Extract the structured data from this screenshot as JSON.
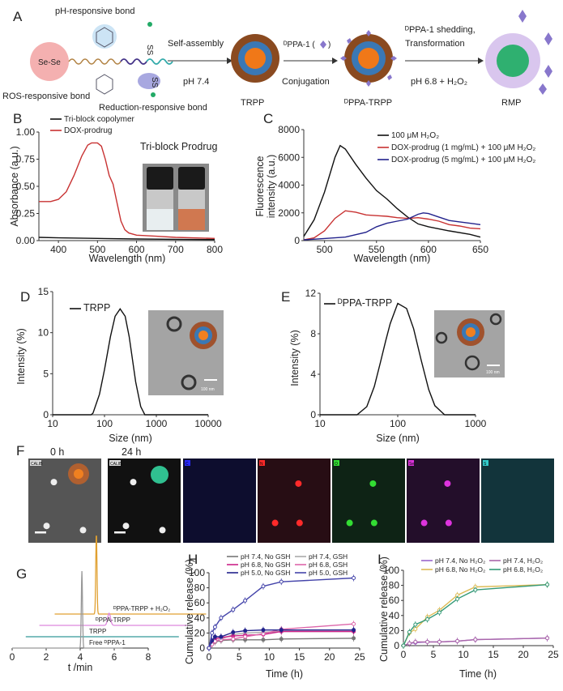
{
  "panels": {
    "A": {
      "label": "A",
      "ph_bond": "pH-responsive bond",
      "ros_bond": "ROS-responsive bond",
      "red_bond": "Reduction-responsive bond",
      "sese": "Se-Se",
      "ss1": "SS",
      "ss2": "SS",
      "step1_top": "Self-assembly",
      "step1_bottom": "pH 7.4",
      "trpp": "TRPP",
      "step2_top": "ᴰPPA-1 (",
      "step2_top_close": ")",
      "step2_bottom": "Conjugation",
      "dppa_trpp": "ᴰPPA-TRPP",
      "step3_top1": "ᴰPPA-1 shedding,",
      "step3_top2": "Transformation",
      "step3_bottom": "pH 6.8 + H₂O₂",
      "rmp": "RMP"
    },
    "B": {
      "label": "B",
      "inset_title": "Tri-block Prodrug"
    },
    "C": {
      "label": "C"
    },
    "D": {
      "label": "D",
      "scale_bar": "100 nm"
    },
    "E": {
      "label": "E",
      "scale_bar": "100 nm"
    },
    "F": {
      "label": "F",
      "time0": "0 h",
      "time24": "24 h",
      "tiles": [
        {
          "tag": "CALIB",
          "color": "#dddddd"
        },
        {
          "tag": "CALIB",
          "color": "#dddddd"
        },
        {
          "tag": "C",
          "color": "#2a2aff"
        },
        {
          "tag": "N",
          "color": "#ff2a2a"
        },
        {
          "tag": "O",
          "color": "#33dd33"
        },
        {
          "tag": "Se",
          "color": "#dd33dd"
        },
        {
          "tag": "S",
          "color": "#33cccc"
        }
      ]
    },
    "G": {
      "label": "G"
    },
    "H": {
      "label": "H"
    },
    "I": {
      "label": "I"
    }
  },
  "chart_data": [
    {
      "panel": "B",
      "type": "line",
      "xlabel": "Wavelength (nm)",
      "ylabel": "Absorbance (a.u.)",
      "xlim": [
        350,
        800
      ],
      "ylim": [
        0,
        1
      ],
      "xticks": [
        "400",
        "500",
        "600",
        "700",
        "800"
      ],
      "yticks": [
        "0.00",
        "0.25",
        "0.50",
        "0.75",
        "1.00"
      ],
      "legend": "top-left",
      "series": [
        {
          "name": "Tri-block copolymer",
          "color": "#111111",
          "x": [
            350,
            400,
            500,
            600,
            700,
            800
          ],
          "y": [
            0.03,
            0.025,
            0.02,
            0.015,
            0.012,
            0.01
          ]
        },
        {
          "name": "DOX-prodrug",
          "color": "#c83232",
          "x": [
            350,
            380,
            400,
            420,
            440,
            460,
            475,
            485,
            500,
            510,
            520,
            530,
            540,
            550,
            560,
            570,
            580,
            600,
            650,
            700,
            800
          ],
          "y": [
            0.36,
            0.36,
            0.38,
            0.45,
            0.6,
            0.78,
            0.88,
            0.9,
            0.9,
            0.87,
            0.75,
            0.6,
            0.52,
            0.35,
            0.18,
            0.1,
            0.07,
            0.05,
            0.04,
            0.03,
            0.02
          ]
        }
      ]
    },
    {
      "panel": "C",
      "type": "line",
      "xlabel": "Wavelength (nm)",
      "ylabel": "Fluorescence intensity (a.u.)",
      "ylabel_line1": "Fluorescence",
      "ylabel_line2": "intensity (a.u.)",
      "xlim": [
        480,
        650
      ],
      "ylim": [
        0,
        8000
      ],
      "xticks": [
        "500",
        "550",
        "600",
        "650"
      ],
      "yticks": [
        "0",
        "2000",
        "4000",
        "6000",
        "8000"
      ],
      "legend": "top-right",
      "series": [
        {
          "name": "100 μM H₂O₂",
          "color": "#111111",
          "x": [
            480,
            490,
            500,
            510,
            515,
            520,
            530,
            540,
            550,
            560,
            570,
            580,
            590,
            600,
            620,
            640,
            650
          ],
          "y": [
            300,
            1500,
            3500,
            6000,
            6850,
            6600,
            5500,
            4500,
            3600,
            3000,
            2300,
            1700,
            1200,
            1000,
            700,
            450,
            250
          ]
        },
        {
          "name": "DOX-prodrug (1 mg/mL) + 100 μM  H₂O₂",
          "color": "#c83232",
          "x": [
            480,
            490,
            500,
            510,
            520,
            530,
            540,
            550,
            560,
            570,
            580,
            590,
            600,
            610,
            620,
            630,
            640,
            650
          ],
          "y": [
            50,
            200,
            700,
            1600,
            2150,
            2050,
            1850,
            1800,
            1750,
            1650,
            1600,
            1650,
            1550,
            1400,
            1150,
            1050,
            900,
            850
          ]
        },
        {
          "name": "DOX-prodrug (5 mg/mL) + 100 μM H₂O₂",
          "color": "#22228c",
          "x": [
            480,
            500,
            520,
            540,
            550,
            560,
            570,
            580,
            590,
            595,
            600,
            610,
            620,
            630,
            640,
            650
          ],
          "y": [
            50,
            150,
            250,
            600,
            1000,
            1250,
            1400,
            1550,
            1900,
            2000,
            1950,
            1700,
            1450,
            1350,
            1250,
            1150
          ]
        }
      ]
    },
    {
      "panel": "D",
      "type": "line",
      "xscale": "log",
      "xlabel": "Size (nm)",
      "ylabel": "Intensity (%)",
      "xlim": [
        10,
        10000
      ],
      "ylim": [
        0,
        15
      ],
      "xticks": [
        "10",
        "100",
        "1000",
        "10000"
      ],
      "yticks": [
        "0",
        "5",
        "10",
        "15"
      ],
      "legend": "top-left",
      "series": [
        {
          "name": "TRPP",
          "color": "#111111",
          "x": [
            10,
            55,
            60,
            80,
            100,
            130,
            160,
            200,
            250,
            300,
            400,
            500,
            600,
            1000,
            10000
          ],
          "y": [
            0,
            0,
            0.2,
            2.5,
            5.5,
            9.5,
            12,
            12.9,
            12,
            9.5,
            4,
            1,
            0,
            0,
            0
          ]
        }
      ]
    },
    {
      "panel": "E",
      "type": "line",
      "xscale": "log",
      "xlabel": "Size (nm)",
      "ylabel": "Intensity (%)",
      "xlim": [
        10,
        1000
      ],
      "ylim": [
        0,
        12
      ],
      "xticks": [
        "10",
        "100",
        "1000"
      ],
      "yticks": [
        "0",
        "4",
        "8",
        "12"
      ],
      "legend": "top-left",
      "series": [
        {
          "name": "ᴰPPA-TRPP",
          "color": "#111111",
          "x": [
            10,
            30,
            40,
            50,
            60,
            70,
            80,
            100,
            130,
            160,
            200,
            250,
            300,
            400,
            1000
          ],
          "y": [
            0,
            0,
            0.8,
            2.8,
            5.2,
            7.3,
            9,
            11,
            10.5,
            8.5,
            5.4,
            2.5,
            0.9,
            0,
            0
          ]
        }
      ]
    },
    {
      "panel": "G",
      "type": "line",
      "xlabel": "t /min",
      "xlim": [
        0,
        8
      ],
      "xticks": [
        "0",
        "2",
        "4",
        "6",
        "8"
      ],
      "series": [
        {
          "name": "ᴰPPA-TRPP + H₂O₂",
          "color": "#e0a030",
          "start": 2.5,
          "end": 11.4,
          "peak_time": 4.95,
          "peak_height": 1.0
        },
        {
          "name": "ᴰPPA-TRPP",
          "color": "#dd88dd",
          "start": 1.6,
          "end": 10.5,
          "peak_time": 5.7,
          "peak_height": 0.1
        },
        {
          "name": "TRPP",
          "color": "#339999",
          "start": 0.8,
          "end": 9.8,
          "peak_time": null,
          "peak_height": 0
        },
        {
          "name": "Free ᴰPPA-1",
          "color": "#999999",
          "start": 0,
          "end": 6.5,
          "peak_time": 4.1,
          "peak_height": 0.95
        }
      ]
    },
    {
      "panel": "H",
      "type": "line",
      "xlabel": "Time (h)",
      "ylabel": "Cumulative release (%)",
      "xlim": [
        0,
        25
      ],
      "ylim": [
        0,
        100
      ],
      "xticks": [
        "0",
        "5",
        "10",
        "15",
        "20",
        "25"
      ],
      "yticks": [
        "0",
        "20",
        "40",
        "60",
        "80",
        "100"
      ],
      "legend": "top",
      "x": [
        0,
        0.5,
        1,
        2,
        4,
        6,
        9,
        12,
        24
      ],
      "series": [
        {
          "name": "pH 7.4, No GSH",
          "color": "#777777",
          "marker": "filled",
          "y": [
            0,
            5,
            8,
            10,
            11,
            11,
            11,
            12,
            13
          ]
        },
        {
          "name": "pH 7.4, GSH",
          "color": "#aaaaaa",
          "marker": "open",
          "y": [
            0,
            6,
            9,
            12,
            18,
            20,
            21,
            22,
            22
          ]
        },
        {
          "name": "pH 6.8, No GSH",
          "color": "#cc2288",
          "marker": "filled",
          "y": [
            0,
            8,
            12,
            14,
            16,
            17,
            18,
            22,
            22
          ]
        },
        {
          "name": "pH 6.8, GSH",
          "color": "#dd66aa",
          "marker": "open",
          "y": [
            0,
            5,
            9,
            11,
            12,
            15,
            19,
            25,
            32
          ]
        },
        {
          "name": "pH 5.0, No GSH",
          "color": "#22228c",
          "marker": "filled",
          "y": [
            0,
            10,
            15,
            15,
            21,
            23,
            24,
            24,
            24
          ]
        },
        {
          "name": "pH 5.0, GSH",
          "color": "#4444aa",
          "marker": "open",
          "y": [
            0,
            20,
            28,
            40,
            51,
            63,
            82,
            88,
            93
          ]
        }
      ]
    },
    {
      "panel": "I",
      "type": "line",
      "xlabel": "Time (h)",
      "ylabel": "Cumulative release (%)",
      "xlim": [
        0,
        25
      ],
      "ylim": [
        0,
        100
      ],
      "xticks": [
        "0",
        "5",
        "10",
        "15",
        "20",
        "25"
      ],
      "yticks": [
        "0",
        "20",
        "40",
        "60",
        "80",
        "100"
      ],
      "legend": "top",
      "x": [
        0,
        1,
        2,
        4,
        6,
        9,
        12,
        24
      ],
      "series": [
        {
          "name": "pH 7.4, No H₂O₂",
          "color": "#9966cc",
          "marker": "open",
          "y": [
            0,
            3,
            4,
            5,
            5,
            6,
            8,
            10
          ]
        },
        {
          "name": "pH 7.4, H₂O₂",
          "color": "#aa66aa",
          "marker": "open",
          "y": [
            0,
            3,
            5,
            5,
            5,
            6,
            8,
            10
          ]
        },
        {
          "name": "pH 6.8, No H₂O₂",
          "color": "#ddbb55",
          "marker": "open",
          "y": [
            0,
            17,
            22,
            38,
            47,
            67,
            78,
            81
          ]
        },
        {
          "name": "pH 6.8, H₂O₂",
          "color": "#339977",
          "marker": "open",
          "y": [
            0,
            18,
            28,
            35,
            44,
            62,
            74,
            81
          ]
        }
      ]
    }
  ]
}
